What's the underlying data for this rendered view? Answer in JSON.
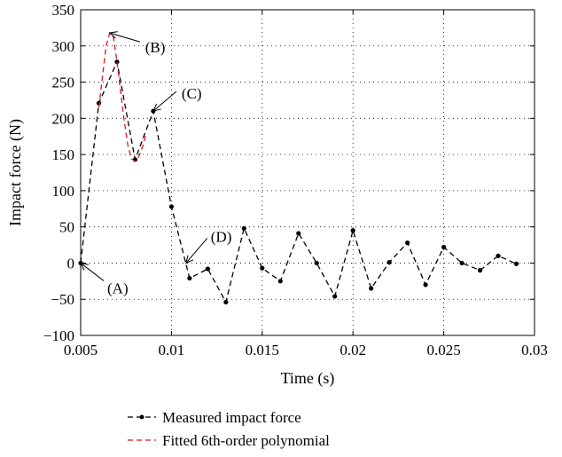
{
  "chart_data": {
    "type": "line",
    "title": "",
    "xlabel": "Time (s)",
    "ylabel": "Impact force (N)",
    "xlim": [
      0.005,
      0.03
    ],
    "ylim": [
      -100,
      350
    ],
    "xticks": [
      0.005,
      0.01,
      0.015,
      0.02,
      0.025,
      0.03
    ],
    "xtick_labels": [
      "0.005",
      "0.01",
      "0.015",
      "0.02",
      "0.025",
      "0.03"
    ],
    "yticks": [
      -100,
      -50,
      0,
      50,
      100,
      150,
      200,
      250,
      300,
      350
    ],
    "ytick_labels": [
      "−100",
      "−50",
      "0",
      "50",
      "100",
      "150",
      "200",
      "250",
      "300",
      "350"
    ],
    "grid": true,
    "legend_position": "below-left",
    "series": [
      {
        "name": "Measured impact force",
        "color": "#000000",
        "style": "dashed-with-dots",
        "x": [
          0.005,
          0.006,
          0.007,
          0.008,
          0.009,
          0.01,
          0.011,
          0.012,
          0.013,
          0.014,
          0.015,
          0.016,
          0.017,
          0.018,
          0.019,
          0.02,
          0.021,
          0.022,
          0.023,
          0.024,
          0.025,
          0.026,
          0.027,
          0.028,
          0.029
        ],
        "y": [
          0,
          221,
          278,
          143,
          210,
          78,
          -21,
          -8,
          -54,
          48,
          -7,
          -25,
          41,
          0,
          -46,
          45,
          -35,
          1,
          28,
          -30,
          22,
          0,
          -10,
          10,
          -1
        ]
      },
      {
        "name": "Fitted 6th-order polynomial",
        "color": "#e0141e",
        "style": "dashed",
        "x": [
          0.006,
          0.0062,
          0.0064,
          0.0066,
          0.0068,
          0.007,
          0.0072,
          0.0074,
          0.0076,
          0.0078,
          0.008,
          0.0082,
          0.0084,
          0.0086
        ],
        "y": [
          215,
          258,
          300,
          318,
          312,
          278,
          236,
          196,
          163,
          144,
          141,
          147,
          160,
          178
        ]
      }
    ],
    "annotations": [
      {
        "label": "(A)",
        "x": 0.005,
        "y": 0
      },
      {
        "label": "(B)",
        "x": 0.0066,
        "y": 318
      },
      {
        "label": "(C)",
        "x": 0.009,
        "y": 210
      },
      {
        "label": "(D)",
        "x": 0.0108,
        "y": 0
      }
    ]
  }
}
